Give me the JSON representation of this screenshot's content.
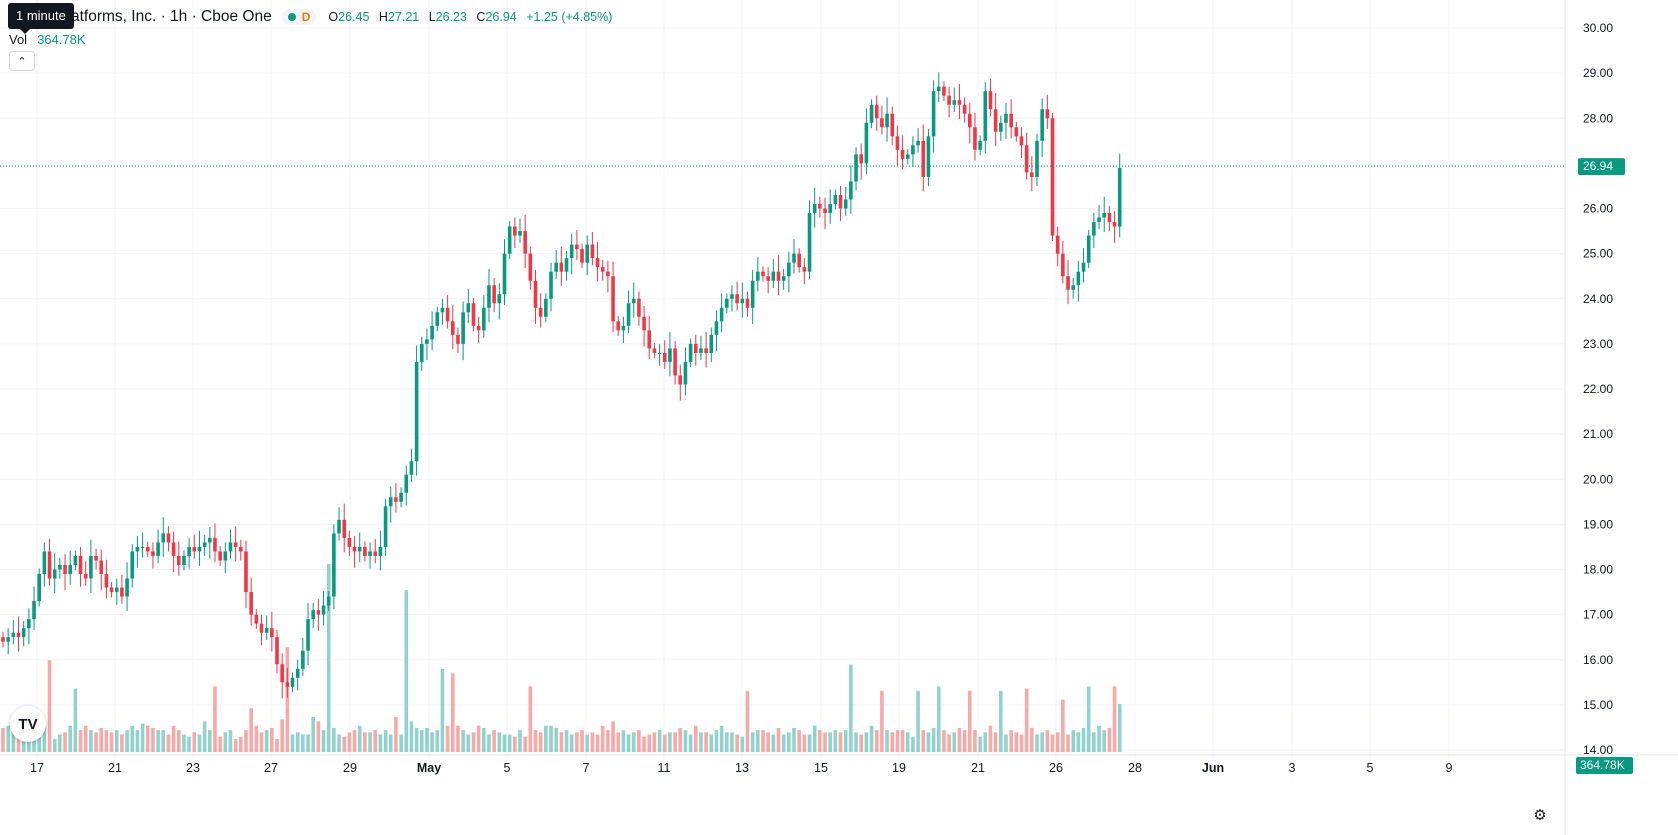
{
  "header": {
    "title_visible": "atforms, Inc. · 1h · Cboe One",
    "delayed_badge": "D",
    "tooltip": "1 minute",
    "ohlc": {
      "open_label": "O",
      "open": "26.45",
      "high_label": "H",
      "high": "27.21",
      "low_label": "L",
      "low": "26.23",
      "close_label": "C",
      "close": "26.94",
      "change": "+1.25 (+4.85%)"
    },
    "volume_label": "Vol",
    "volume_value": "364.78K",
    "logo_text": "TV"
  },
  "colors": {
    "up": "#089981",
    "down": "#f23645",
    "up_volume": "#92d2cc",
    "down_volume": "#f7a9a7",
    "grid": "#f0f3fa",
    "text": "#131722"
  },
  "icons": {
    "collapse": "chevron-up-icon",
    "settings": "gear-icon",
    "status": "market-status-dot-icon"
  },
  "chart_data": {
    "type": "candlestick",
    "interval": "1h",
    "ylim": [
      13.9,
      30.25
    ],
    "price_ticks": [
      "14.00",
      "15.00",
      "16.00",
      "17.00",
      "18.00",
      "19.00",
      "20.00",
      "21.00",
      "22.00",
      "23.00",
      "24.00",
      "25.00",
      "26.00",
      "27.00",
      "28.00",
      "29.00",
      "30.00"
    ],
    "x_ticks": [
      "17",
      "21",
      "23",
      "27",
      "29",
      "May",
      "5",
      "7",
      "11",
      "13",
      "15",
      "19",
      "21",
      "26",
      "28",
      "Jun",
      "3",
      "5",
      "9"
    ],
    "x_ticks_bold": [
      "May",
      "Jun"
    ],
    "last_price": 26.94,
    "last_price_label": "26.94",
    "last_volume_label": "364.78K",
    "grid": true,
    "closes": [
      16.4,
      16.5,
      16.6,
      16.5,
      16.7,
      16.9,
      17.3,
      17.9,
      18.4,
      17.8,
      18.0,
      18.1,
      17.9,
      18.1,
      18.3,
      17.9,
      17.8,
      18.3,
      18.2,
      17.9,
      17.6,
      17.5,
      17.6,
      17.4,
      17.8,
      18.4,
      18.5,
      18.5,
      18.4,
      18.3,
      18.6,
      18.8,
      18.6,
      18.3,
      18.1,
      18.3,
      18.5,
      18.4,
      18.5,
      18.6,
      18.7,
      18.4,
      18.2,
      18.4,
      18.6,
      18.5,
      18.4,
      17.5,
      17.0,
      16.8,
      16.6,
      16.7,
      16.5,
      15.9,
      15.5,
      15.4,
      15.6,
      15.8,
      16.2,
      16.9,
      17.1,
      17.0,
      17.2,
      17.4,
      18.8,
      19.1,
      18.7,
      18.5,
      18.4,
      18.5,
      18.3,
      18.4,
      18.3,
      18.5,
      19.4,
      19.6,
      19.5,
      19.7,
      20.1,
      20.4,
      22.6,
      23.0,
      23.1,
      23.4,
      23.7,
      23.8,
      23.5,
      23.2,
      23.0,
      23.7,
      23.9,
      23.4,
      23.3,
      23.8,
      24.3,
      23.9,
      24.1,
      25.0,
      25.6,
      25.4,
      25.5,
      25.0,
      24.4,
      23.8,
      23.6,
      24.0,
      24.6,
      24.8,
      24.6,
      24.9,
      25.2,
      25.1,
      24.8,
      25.2,
      24.9,
      24.7,
      24.6,
      24.5,
      23.5,
      23.3,
      23.4,
      23.9,
      24.0,
      23.6,
      23.3,
      22.9,
      22.8,
      22.8,
      22.6,
      22.9,
      22.3,
      22.1,
      22.6,
      23.0,
      22.8,
      22.9,
      22.8,
      23.2,
      23.5,
      23.8,
      24.0,
      24.1,
      23.9,
      24.0,
      23.8,
      24.4,
      24.6,
      24.5,
      24.4,
      24.6,
      24.4,
      24.5,
      24.8,
      25.0,
      24.7,
      24.6,
      25.9,
      26.1,
      26.0,
      25.9,
      26.1,
      26.3,
      26.0,
      26.2,
      26.6,
      27.2,
      27.0,
      27.9,
      28.3,
      28.0,
      27.8,
      28.1,
      27.6,
      27.3,
      27.1,
      27.2,
      27.4,
      27.5,
      26.7,
      27.6,
      28.6,
      28.7,
      28.5,
      28.3,
      28.4,
      28.3,
      28.1,
      27.8,
      27.3,
      27.5,
      28.6,
      28.2,
      27.7,
      27.9,
      28.1,
      27.8,
      27.6,
      27.4,
      26.8,
      26.7,
      27.5,
      28.2,
      28.0,
      25.4,
      25.0,
      24.5,
      24.2,
      24.3,
      24.6,
      24.8,
      25.4,
      25.7,
      25.8,
      25.9,
      25.7,
      25.6,
      26.9
    ],
    "volumes": [
      0.55,
      0.6,
      0.5,
      0.45,
      0.55,
      0.5,
      0.45,
      0.45,
      0.6,
      0.5,
      0.3,
      0.4,
      0.45,
      0.6,
      1.45,
      0.5,
      0.6,
      0.5,
      0.45,
      0.55,
      0.5,
      0.45,
      0.5,
      0.4,
      0.5,
      0.6,
      0.5,
      0.65,
      0.6,
      0.55,
      0.5,
      0.5,
      0.4,
      0.6,
      0.5,
      0.4,
      0.35,
      0.45,
      0.4,
      0.7,
      0.5,
      0.4,
      0.35,
      0.45,
      0.5,
      0.3,
      0.35,
      0.5,
      1.0,
      0.6,
      0.45,
      0.5,
      0.55,
      0.3,
      0.75,
      0.5,
      0.4,
      0.45,
      0.4,
      0.4,
      0.8,
      0.7,
      0.5,
      0.45,
      0.55,
      0.4,
      0.35,
      0.45,
      0.5,
      0.6,
      0.45,
      0.45,
      0.5,
      0.4,
      0.5,
      0.4,
      0.8,
      0.4,
      0.45,
      0.7,
      0.55,
      0.5,
      0.55,
      0.45,
      0.5,
      0.5,
      0.6,
      0.45,
      0.6,
      0.5,
      0.4,
      0.45,
      0.6,
      0.55,
      0.4,
      0.5,
      0.45,
      0.4,
      0.4,
      0.35,
      0.5,
      0.35,
      0.8,
      0.5,
      0.45,
      0.6,
      0.6,
      0.55,
      0.45,
      0.5,
      0.4,
      0.45,
      0.5,
      0.4,
      0.45,
      0.4,
      0.6,
      0.5,
      0.7,
      0.45,
      0.5,
      0.4,
      0.45,
      0.5,
      0.35,
      0.4,
      0.45,
      0.5,
      0.4,
      0.45,
      0.45,
      0.55,
      0.5,
      0.4,
      0.6,
      0.45,
      0.45,
      0.4,
      0.5,
      0.6,
      0.45,
      0.45,
      0.4,
      0.35,
      0.4,
      0.45,
      0.5,
      0.5,
      0.45,
      0.4,
      0.55,
      0.4,
      0.45,
      0.55,
      0.5,
      0.4,
      0.4,
      0.6,
      0.5,
      0.45,
      0.45,
      0.5,
      0.45,
      0.5,
      0.5,
      0.45,
      0.4,
      0.45,
      0.6,
      0.5,
      0.55,
      0.5,
      0.45,
      0.5,
      0.5,
      0.45,
      0.35,
      0.45,
      0.5,
      0.45,
      0.55,
      0.5,
      0.5,
      0.4,
      0.45,
      0.55,
      0.5,
      0.45,
      0.5,
      0.35,
      0.45,
      0.6,
      0.45,
      0.5,
      0.4,
      0.5,
      0.45,
      0.4,
      0.5,
      0.55,
      0.4,
      0.45,
      0.5,
      0.4,
      0.45,
      0.5,
      0.4,
      0.5,
      0.45,
      0.55,
      0.5,
      0.45,
      0.6,
      0.5,
      0.55,
      0.4,
      0.5,
      0.45,
      0.4,
      0.45,
      0.5,
      0.6
    ],
    "volume_spikes": [
      [
        9,
        2.1
      ],
      [
        41,
        1.5
      ],
      [
        55,
        2.4
      ],
      [
        63,
        4.3
      ],
      [
        78,
        3.7
      ],
      [
        85,
        1.9
      ],
      [
        87,
        1.8
      ],
      [
        102,
        1.5
      ],
      [
        144,
        1.4
      ],
      [
        164,
        2.0
      ],
      [
        170,
        1.4
      ],
      [
        177,
        1.4
      ],
      [
        181,
        1.5
      ],
      [
        187,
        1.4
      ],
      [
        193,
        1.4
      ],
      [
        198,
        1.45
      ],
      [
        205,
        1.2
      ],
      [
        210,
        1.5
      ],
      [
        215,
        1.5
      ],
      [
        216,
        1.1
      ]
    ],
    "volume_scale_max": 4.3
  }
}
